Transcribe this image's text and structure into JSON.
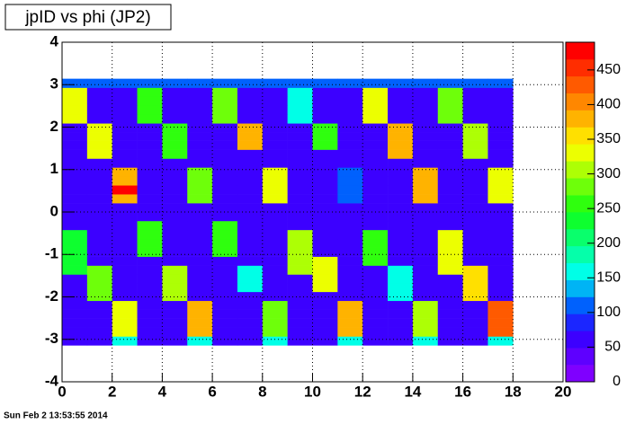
{
  "chart_data": {
    "type": "heatmap",
    "title": "jpID vs phi (JP2)",
    "x": [
      0,
      1,
      2,
      3,
      4,
      5,
      6,
      7,
      8,
      9,
      10,
      11,
      12,
      13,
      14,
      15,
      16,
      17,
      18
    ],
    "y": [
      -3.14,
      -2.93,
      -2.72,
      -2.51,
      -2.3,
      -2.09,
      -1.88,
      -1.68,
      -1.47,
      -1.26,
      -1.05,
      -0.84,
      -0.63,
      -0.42,
      -0.21,
      0,
      0.21,
      0.42,
      0.63,
      0.84,
      1.05,
      1.26,
      1.47,
      1.68,
      1.88,
      2.09,
      2.3,
      2.51,
      2.72,
      2.93,
      3.14
    ],
    "z": [
      [
        60,
        60,
        150,
        60,
        60,
        150,
        60,
        60,
        150,
        60,
        60,
        150,
        60,
        60,
        150,
        60,
        60,
        150
      ],
      [
        60,
        60,
        330,
        60,
        60,
        370,
        60,
        60,
        280,
        60,
        60,
        380,
        60,
        60,
        300,
        60,
        60,
        420
      ],
      [
        60,
        60,
        330,
        60,
        60,
        370,
        60,
        60,
        280,
        60,
        60,
        380,
        60,
        60,
        300,
        60,
        60,
        420
      ],
      [
        60,
        60,
        330,
        60,
        60,
        370,
        60,
        60,
        280,
        60,
        60,
        380,
        60,
        60,
        300,
        60,
        60,
        420
      ],
      [
        60,
        60,
        330,
        60,
        60,
        370,
        60,
        60,
        280,
        60,
        60,
        380,
        60,
        60,
        300,
        60,
        60,
        420
      ],
      [
        60,
        270,
        60,
        60,
        300,
        60,
        60,
        60,
        60,
        60,
        60,
        60,
        60,
        150,
        60,
        60,
        350,
        60
      ],
      [
        60,
        270,
        60,
        60,
        300,
        60,
        60,
        150,
        60,
        60,
        320,
        60,
        60,
        150,
        60,
        60,
        350,
        60
      ],
      [
        60,
        270,
        60,
        60,
        300,
        60,
        60,
        150,
        60,
        60,
        320,
        60,
        60,
        150,
        60,
        60,
        350,
        60
      ],
      [
        230,
        270,
        60,
        60,
        300,
        60,
        60,
        150,
        60,
        300,
        320,
        60,
        60,
        150,
        60,
        330,
        350,
        60
      ],
      [
        230,
        60,
        60,
        60,
        60,
        60,
        60,
        60,
        60,
        300,
        320,
        60,
        250,
        60,
        60,
        330,
        60,
        60
      ],
      [
        230,
        60,
        60,
        250,
        60,
        60,
        260,
        60,
        60,
        300,
        60,
        60,
        250,
        60,
        60,
        330,
        60,
        60
      ],
      [
        230,
        60,
        60,
        250,
        60,
        60,
        260,
        60,
        60,
        300,
        60,
        60,
        250,
        60,
        60,
        330,
        60,
        60
      ],
      [
        230,
        60,
        60,
        250,
        60,
        60,
        260,
        60,
        60,
        300,
        60,
        60,
        250,
        60,
        60,
        330,
        60,
        60
      ],
      [
        60,
        60,
        60,
        250,
        60,
        60,
        260,
        60,
        60,
        60,
        60,
        60,
        60,
        60,
        60,
        60,
        60,
        60
      ],
      [
        60,
        60,
        60,
        60,
        60,
        60,
        60,
        60,
        60,
        60,
        60,
        60,
        60,
        60,
        60,
        60,
        60,
        60
      ],
      [
        60,
        60,
        60,
        60,
        60,
        60,
        60,
        60,
        60,
        60,
        60,
        60,
        60,
        60,
        60,
        60,
        60,
        60
      ],
      [
        60,
        60,
        380,
        60,
        60,
        280,
        60,
        60,
        330,
        60,
        60,
        120,
        60,
        60,
        380,
        60,
        60,
        320
      ],
      [
        60,
        60,
        480,
        60,
        60,
        280,
        60,
        60,
        330,
        60,
        60,
        120,
        60,
        60,
        380,
        60,
        60,
        320
      ],
      [
        60,
        60,
        380,
        60,
        60,
        280,
        60,
        60,
        330,
        60,
        60,
        120,
        60,
        60,
        380,
        60,
        60,
        320
      ],
      [
        60,
        60,
        380,
        60,
        60,
        280,
        60,
        60,
        330,
        60,
        60,
        120,
        60,
        60,
        380,
        60,
        60,
        320
      ],
      [
        60,
        60,
        60,
        60,
        60,
        60,
        60,
        60,
        60,
        60,
        60,
        60,
        60,
        60,
        60,
        60,
        60,
        60
      ],
      [
        60,
        330,
        60,
        60,
        260,
        60,
        60,
        60,
        60,
        60,
        60,
        60,
        60,
        370,
        60,
        60,
        300,
        60
      ],
      [
        60,
        330,
        60,
        60,
        260,
        60,
        60,
        380,
        60,
        60,
        250,
        60,
        60,
        370,
        60,
        60,
        300,
        60
      ],
      [
        60,
        330,
        60,
        60,
        260,
        60,
        60,
        380,
        60,
        60,
        250,
        60,
        60,
        370,
        60,
        60,
        300,
        60
      ],
      [
        60,
        330,
        60,
        60,
        260,
        60,
        60,
        380,
        60,
        60,
        250,
        60,
        60,
        370,
        60,
        60,
        300,
        60
      ],
      [
        330,
        60,
        60,
        250,
        60,
        60,
        280,
        60,
        60,
        150,
        60,
        60,
        320,
        60,
        60,
        280,
        60,
        60
      ],
      [
        330,
        60,
        60,
        250,
        60,
        60,
        280,
        60,
        60,
        150,
        60,
        60,
        320,
        60,
        60,
        280,
        60,
        60
      ],
      [
        330,
        60,
        60,
        250,
        60,
        60,
        280,
        60,
        60,
        150,
        60,
        60,
        320,
        60,
        60,
        280,
        60,
        60
      ],
      [
        330,
        60,
        60,
        250,
        60,
        60,
        280,
        60,
        60,
        150,
        60,
        60,
        320,
        60,
        60,
        280,
        60,
        60
      ],
      [
        100,
        100,
        100,
        100,
        100,
        100,
        100,
        100,
        100,
        100,
        100,
        100,
        100,
        100,
        100,
        100,
        100,
        100
      ]
    ],
    "xlim": [
      0,
      20
    ],
    "ylim": [
      -4,
      4
    ],
    "zlim": [
      0,
      490
    ],
    "xticks": [
      0,
      2,
      4,
      6,
      8,
      10,
      12,
      14,
      16,
      18,
      20
    ],
    "yticks": [
      -4,
      -3,
      -2,
      -1,
      0,
      1,
      2,
      3,
      4
    ],
    "zticks": [
      0,
      50,
      100,
      150,
      200,
      250,
      300,
      350,
      400,
      450
    ],
    "grid": true
  },
  "timestamp": "Sun Feb  2 13:53:55 2014"
}
